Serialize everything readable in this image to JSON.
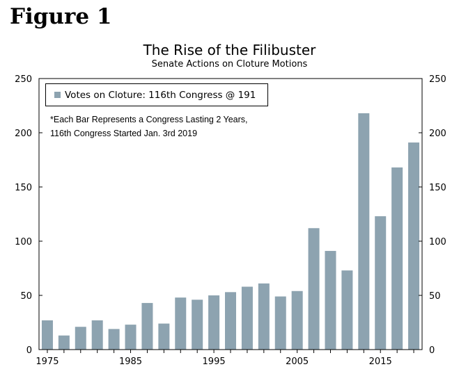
{
  "figure_label": "Figure 1",
  "chart_data": {
    "type": "bar",
    "title": "The Rise of the Filibuster",
    "subtitle": "Senate Actions on Cloture Motions",
    "legend": "Votes on Cloture: 116th Congress @ 191",
    "note_lines": [
      "*Each Bar Represents  a Congress Lasting 2 Years,",
      "116th Congress Started Jan. 3rd 2019"
    ],
    "bar_color": "#8da3b0",
    "x": [
      1975,
      1977,
      1979,
      1981,
      1983,
      1985,
      1987,
      1989,
      1991,
      1993,
      1995,
      1997,
      1999,
      2001,
      2003,
      2005,
      2007,
      2009,
      2011,
      2013,
      2015,
      2017,
      2019
    ],
    "values": [
      27,
      13,
      21,
      27,
      19,
      23,
      43,
      24,
      48,
      46,
      50,
      53,
      58,
      61,
      49,
      54,
      112,
      91,
      73,
      218,
      123,
      168,
      191
    ],
    "x_ticks": [
      "1975",
      "1985",
      "1995",
      "2005",
      "2015"
    ],
    "y_ticks": [
      "0",
      "50",
      "100",
      "150",
      "200",
      "250"
    ],
    "ylim": [
      0,
      250
    ],
    "xlim": [
      1974,
      2020
    ]
  }
}
